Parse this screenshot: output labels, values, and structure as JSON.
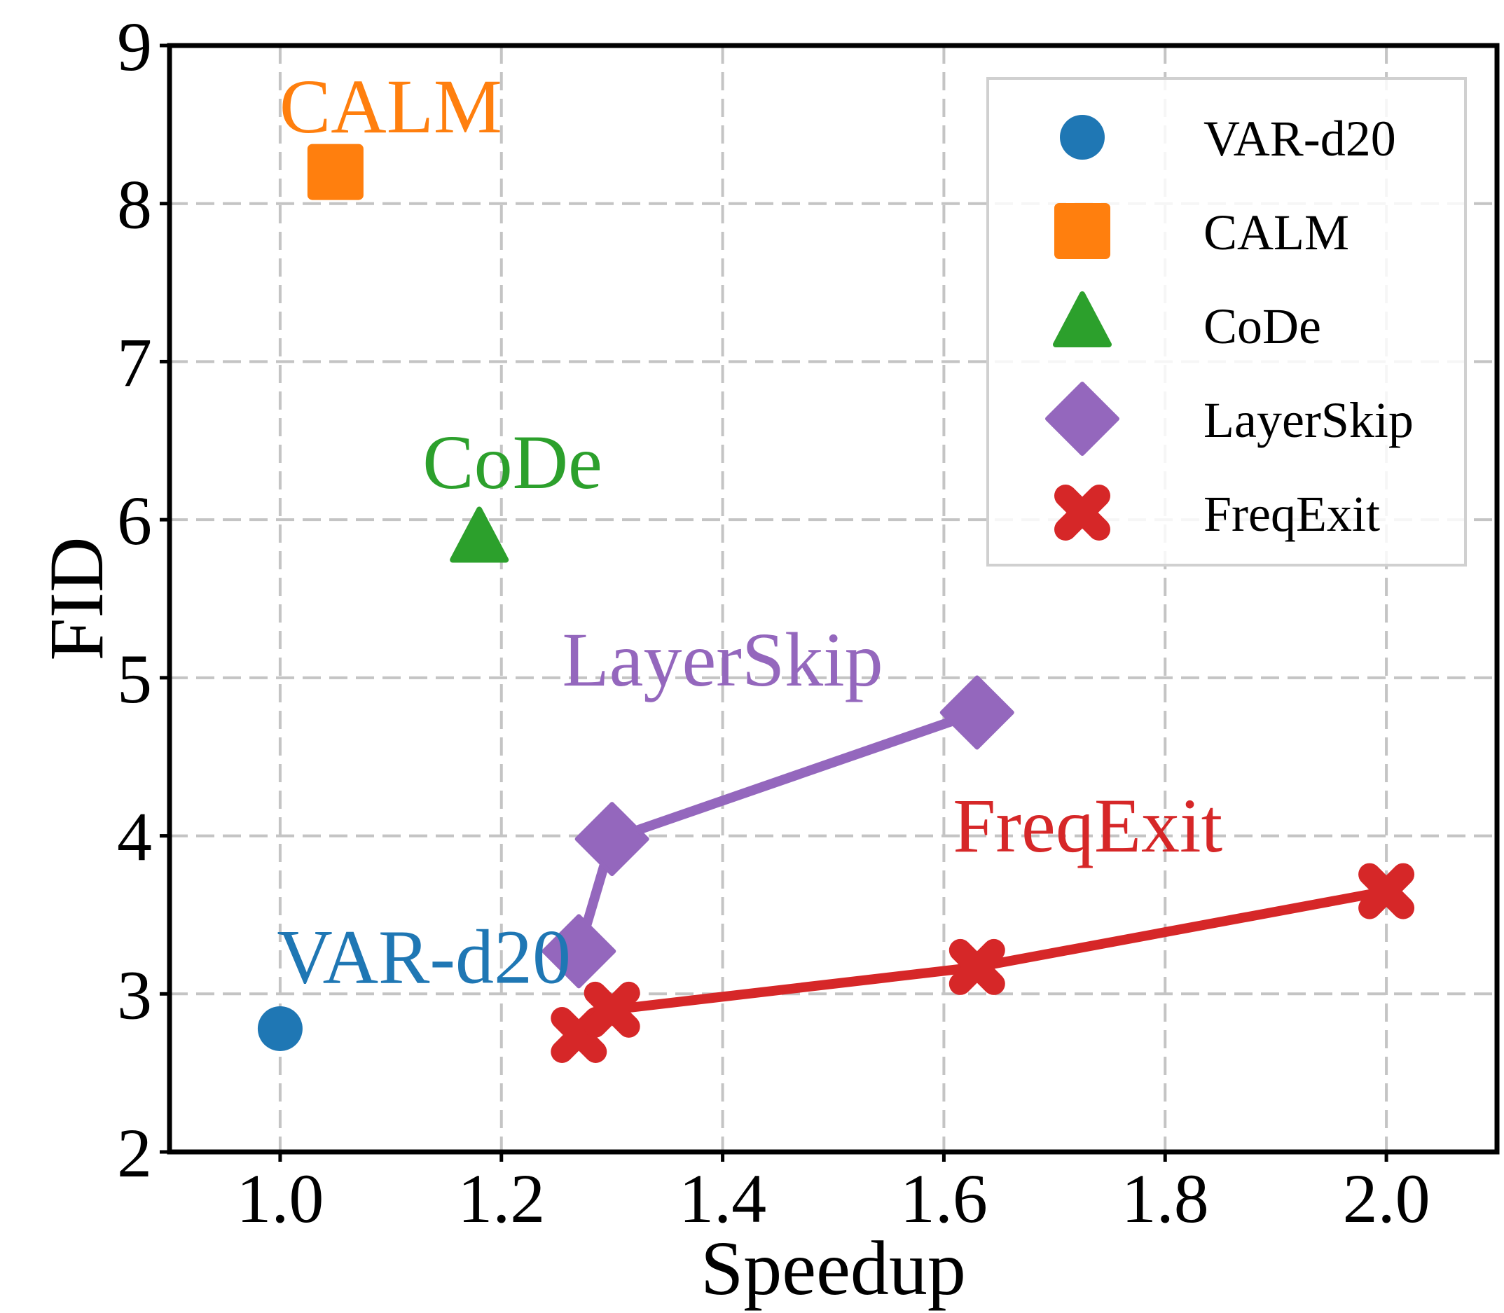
{
  "chart_data": {
    "type": "scatter",
    "xlabel": "Speedup",
    "ylabel": "FID",
    "xlim": [
      0.9,
      2.1
    ],
    "ylim": [
      2,
      9
    ],
    "xticks": [
      1.0,
      1.2,
      1.4,
      1.6,
      1.8,
      2.0
    ],
    "xtick_labels": [
      "1.0",
      "1.2",
      "1.4",
      "1.6",
      "1.8",
      "2.0"
    ],
    "yticks": [
      2,
      3,
      4,
      5,
      6,
      7,
      8,
      9
    ],
    "ytick_labels": [
      "2",
      "3",
      "4",
      "5",
      "6",
      "7",
      "8",
      "9"
    ],
    "grid": true,
    "legend_position": "top-right",
    "series": [
      {
        "name": "VAR-d20",
        "color": "#1f77b4",
        "marker": "circle",
        "connected": false,
        "points": [
          {
            "x": 1.0,
            "y": 2.78
          }
        ],
        "annotation": {
          "text": "VAR-d20",
          "x": 1.13,
          "y": 3.07
        }
      },
      {
        "name": "CALM",
        "color": "#ff7f0e",
        "marker": "square",
        "connected": false,
        "points": [
          {
            "x": 1.05,
            "y": 8.2
          }
        ],
        "annotation": {
          "text": "CALM",
          "x": 1.1,
          "y": 8.45
        }
      },
      {
        "name": "CoDe",
        "color": "#2ca02c",
        "marker": "triangle",
        "connected": false,
        "points": [
          {
            "x": 1.18,
            "y": 5.87
          }
        ],
        "annotation": {
          "text": "CoDe",
          "x": 1.21,
          "y": 6.2
        }
      },
      {
        "name": "LayerSkip",
        "color": "#9467bd",
        "marker": "diamond",
        "connected": true,
        "points": [
          {
            "x": 1.27,
            "y": 3.27
          },
          {
            "x": 1.3,
            "y": 3.98
          },
          {
            "x": 1.63,
            "y": 4.78
          }
        ],
        "annotation": {
          "text": "LayerSkip",
          "x": 1.4,
          "y": 4.95
        }
      },
      {
        "name": "FreqExit",
        "color": "#d62728",
        "marker": "x-filled",
        "connected": true,
        "points": [
          {
            "x": 1.27,
            "y": 2.74
          },
          {
            "x": 1.3,
            "y": 2.9
          },
          {
            "x": 1.63,
            "y": 3.17
          },
          {
            "x": 2.0,
            "y": 3.65
          }
        ],
        "annotation": {
          "text": "FreqExit",
          "x": 1.73,
          "y": 3.9
        }
      }
    ]
  }
}
